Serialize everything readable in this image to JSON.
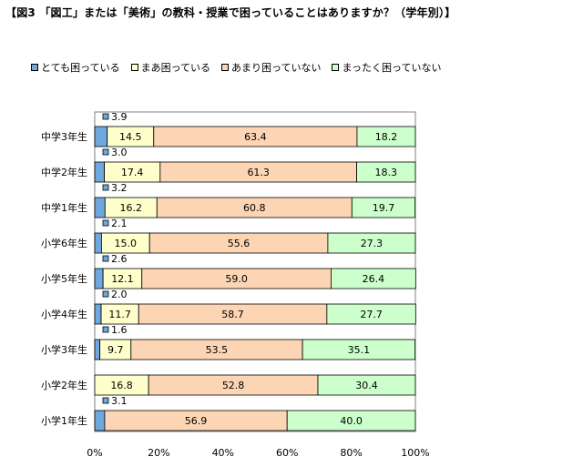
{
  "chart_data": {
    "type": "bar",
    "orientation": "horizontal",
    "stacked": true,
    "title": "【図3 「図工」または「美術」の教科・授業で困っていることはありますか？（学年別）】",
    "categories": [
      "中学3年生",
      "中学2年生",
      "中学1年生",
      "小学6年生",
      "小学5年生",
      "小学4年生",
      "小学3年生",
      "小学2年生",
      "小学1年生"
    ],
    "series": [
      {
        "name": "とても困っている",
        "color": "#6fa8dc",
        "values": [
          3.9,
          3.0,
          3.2,
          2.1,
          2.6,
          2.0,
          1.6,
          0.0,
          3.1
        ]
      },
      {
        "name": "まあ困っている",
        "color": "#ffffcc",
        "values": [
          14.5,
          17.4,
          16.2,
          15.0,
          12.1,
          11.7,
          9.7,
          16.8,
          0.0
        ]
      },
      {
        "name": "あまり困っていない",
        "color": "#fcd5b4",
        "values": [
          63.4,
          61.3,
          60.8,
          55.6,
          59.0,
          58.7,
          53.5,
          52.8,
          56.9
        ]
      },
      {
        "name": "まったく困っていない",
        "color": "#ccffcc",
        "values": [
          18.2,
          18.3,
          19.7,
          27.3,
          26.4,
          27.7,
          35.1,
          30.4,
          40.0
        ]
      }
    ],
    "labels": [
      [
        "3.9",
        "14.5",
        "63.4",
        "18.2"
      ],
      [
        "3.0",
        "17.4",
        "61.3",
        "18.3"
      ],
      [
        "3.2",
        "16.2",
        "60.8",
        "19.7"
      ],
      [
        "2.1",
        "15.0",
        "55.6",
        "27.3"
      ],
      [
        "2.6",
        "12.1",
        "59.0",
        "26.4"
      ],
      [
        "2.0",
        "11.7",
        "58.7",
        "27.7"
      ],
      [
        "1.6",
        "9.7",
        "53.5",
        "35.1"
      ],
      [
        "",
        "16.8",
        "52.8",
        "30.4"
      ],
      [
        "3.1",
        "",
        "56.9",
        "40.0"
      ]
    ],
    "xlim": [
      0,
      100
    ],
    "xticks": [
      "0%",
      "20%",
      "40%",
      "60%",
      "80%",
      "100%"
    ],
    "grid": false,
    "legend_position": "top"
  }
}
